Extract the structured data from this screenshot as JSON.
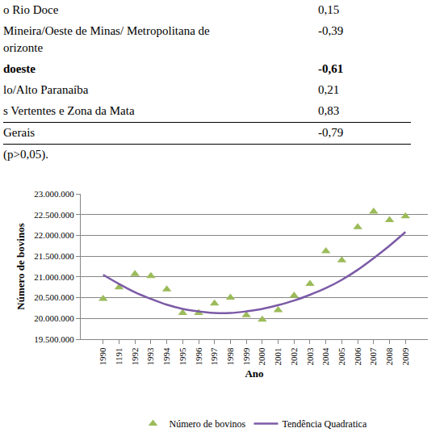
{
  "table": {
    "rows": [
      {
        "label": [
          "o Rio Doce"
        ],
        "value": "0,15",
        "bold": false
      },
      {
        "label": [
          "Mineira/Oeste de Minas/ Metropolitana de",
          "orizonte"
        ],
        "value": "-0,39",
        "bold": false
      },
      {
        "label": [
          "doeste"
        ],
        "value": "-0,61",
        "bold": true
      },
      {
        "label": [
          "lo/Alto Paranaíba"
        ],
        "value": "0,21",
        "bold": false
      },
      {
        "label": [
          "s Vertentes e Zona da Mata"
        ],
        "value": "0,83",
        "bold": false
      },
      {
        "label": [
          "Gerais"
        ],
        "value": "-0,79",
        "bold": false,
        "total": true
      }
    ],
    "note": "(p>0,05)."
  },
  "chart_data": {
    "type": "scatter",
    "x_label": "Ano",
    "y_label": "Número de bovinos",
    "categories": [
      "1990",
      "1191",
      "1992",
      "1993",
      "1994",
      "1995",
      "1996",
      "1997",
      "1998",
      "1999",
      "2000",
      "2001",
      "2002",
      "2003",
      "2004",
      "2005",
      "2006",
      "2007",
      "2008",
      "2009"
    ],
    "series": [
      {
        "name": "Número de bovinos",
        "type": "scatter",
        "marker": "triangle-up",
        "color": "#9bbb59",
        "values": [
          20470000,
          20750000,
          21070000,
          21020000,
          20700000,
          20130000,
          20130000,
          20360000,
          20500000,
          20080000,
          19970000,
          20200000,
          20550000,
          20830000,
          21620000,
          21400000,
          22200000,
          22570000,
          22370000,
          22460000
        ]
      },
      {
        "name": "Tendência Quadratica",
        "type": "line",
        "line_style": "solid",
        "color": "#7b5aa6",
        "values": [
          21050000,
          20830000,
          20630000,
          20470000,
          20330000,
          20230000,
          20170000,
          20130000,
          20130000,
          20170000,
          20230000,
          20320000,
          20430000,
          20570000,
          20730000,
          20930000,
          21170000,
          21450000,
          21750000,
          22080000
        ]
      }
    ],
    "ylim": [
      19500000,
      23000000
    ],
    "yticks": [
      {
        "value": 19500000,
        "label": "19.500.000"
      },
      {
        "value": 20000000,
        "label": "20.000.000"
      },
      {
        "value": 20500000,
        "label": "20.500.000"
      },
      {
        "value": 21000000,
        "label": "21.000.000"
      },
      {
        "value": 21500000,
        "label": "21.500.000"
      },
      {
        "value": 22000000,
        "label": "22.000.000"
      },
      {
        "value": 22500000,
        "label": "22.500.000"
      },
      {
        "value": 23000000,
        "label": "23.000.000"
      }
    ],
    "grid": true,
    "legend": "bottom"
  }
}
